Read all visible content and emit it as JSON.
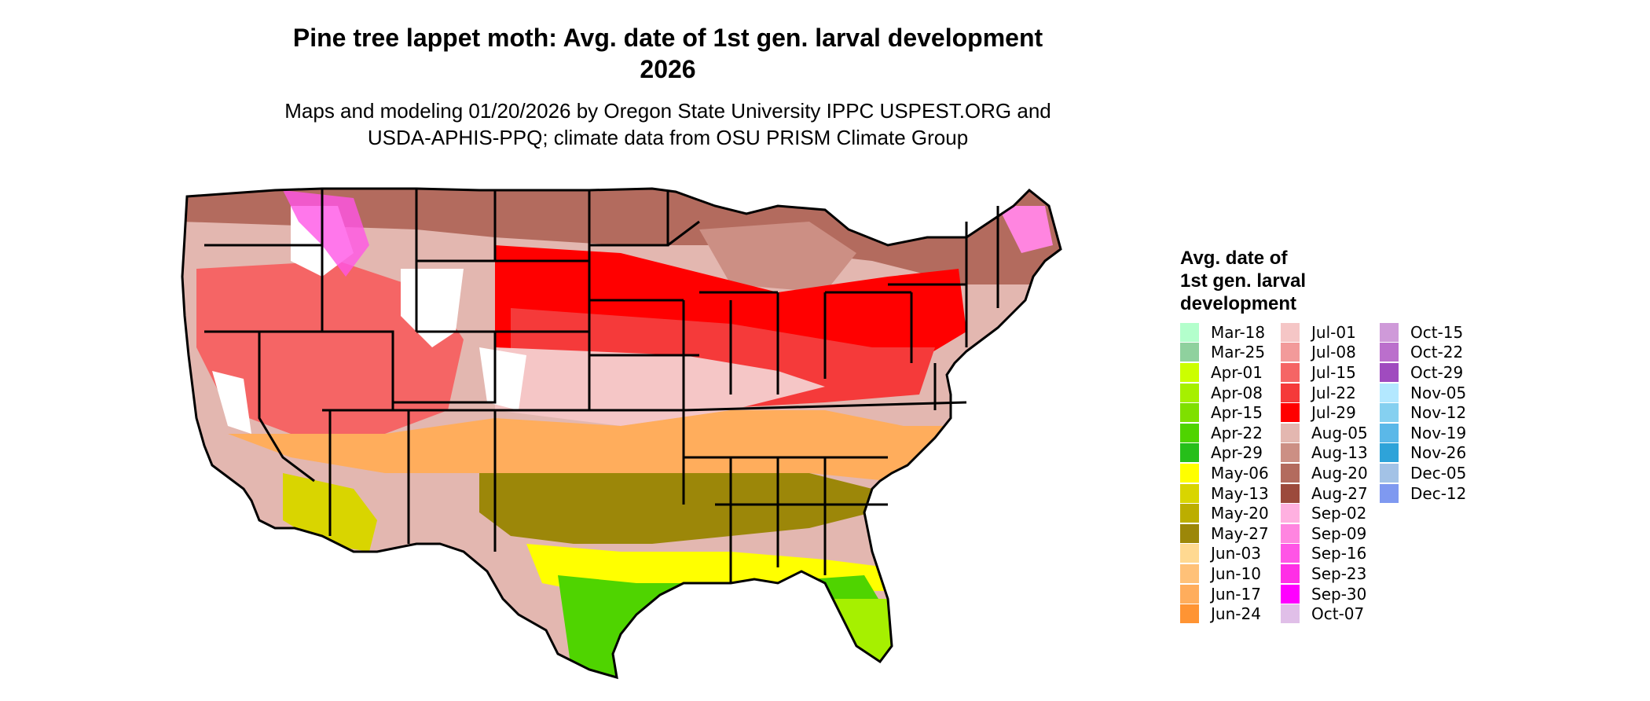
{
  "title": [
    "Pine tree lappet moth: Avg. date of 1st gen. larval development",
    "2026"
  ],
  "subtitle": [
    "Maps and modeling 01/20/2026 by Oregon State University IPPC USPEST.ORG and",
    "USDA-APHIS-PPQ; climate data from OSU PRISM Climate Group"
  ],
  "legend": {
    "title": [
      "Avg. date of",
      "1st gen. larval",
      "development"
    ],
    "columns": [
      [
        {
          "label": "Mar-18",
          "color": "#b3ffcc"
        },
        {
          "label": "Mar-25",
          "color": "#8fd19e"
        },
        {
          "label": "Apr-01",
          "color": "#ccff00"
        },
        {
          "label": "Apr-08",
          "color": "#a6f000"
        },
        {
          "label": "Apr-15",
          "color": "#7fe000"
        },
        {
          "label": "Apr-22",
          "color": "#4fd400"
        },
        {
          "label": "Apr-29",
          "color": "#26bf1a"
        },
        {
          "label": "May-06",
          "color": "#ffff00"
        },
        {
          "label": "May-13",
          "color": "#d9d500"
        },
        {
          "label": "May-20",
          "color": "#bcae00"
        },
        {
          "label": "May-27",
          "color": "#9c8709"
        },
        {
          "label": "Jun-03",
          "color": "#ffd991"
        },
        {
          "label": "Jun-10",
          "color": "#ffc178"
        },
        {
          "label": "Jun-17",
          "color": "#ffad5c"
        },
        {
          "label": "Jun-24",
          "color": "#ff9433"
        }
      ],
      [
        {
          "label": "Jul-01",
          "color": "#f5c6c6"
        },
        {
          "label": "Jul-08",
          "color": "#f29a9a"
        },
        {
          "label": "Jul-15",
          "color": "#f56565"
        },
        {
          "label": "Jul-22",
          "color": "#f53a3a"
        },
        {
          "label": "Jul-29",
          "color": "#ff0000"
        },
        {
          "label": "Aug-05",
          "color": "#e3b7b0"
        },
        {
          "label": "Aug-13",
          "color": "#cc8f84"
        },
        {
          "label": "Aug-20",
          "color": "#b36b5e"
        },
        {
          "label": "Aug-27",
          "color": "#9c4a3c"
        },
        {
          "label": "Sep-02",
          "color": "#ffb0e0"
        },
        {
          "label": "Sep-09",
          "color": "#ff85e0"
        },
        {
          "label": "Sep-16",
          "color": "#ff55e6"
        },
        {
          "label": "Sep-23",
          "color": "#ff2ee6"
        },
        {
          "label": "Sep-30",
          "color": "#ff00ff"
        },
        {
          "label": "Oct-07",
          "color": "#e0bfe8"
        }
      ],
      [
        {
          "label": "Oct-15",
          "color": "#cf9ad9"
        },
        {
          "label": "Oct-22",
          "color": "#bb6fcc"
        },
        {
          "label": "Oct-29",
          "color": "#a04bbf"
        },
        {
          "label": "Nov-05",
          "color": "#b3e8ff"
        },
        {
          "label": "Nov-12",
          "color": "#85d0f0"
        },
        {
          "label": "Nov-19",
          "color": "#5bb8e8"
        },
        {
          "label": "Nov-26",
          "color": "#2ea3d9"
        },
        {
          "label": "Dec-05",
          "color": "#a3c2e6"
        },
        {
          "label": "Dec-12",
          "color": "#7f99f0"
        }
      ]
    ]
  },
  "map_colors": {
    "outline": "#000000",
    "white_mountains": "#ffffff",
    "magenta_high": "#ff55e6",
    "brown_north": "#b36b5e",
    "light_brown": "#cc8f84",
    "red_midwest": "#ff0000",
    "red_mid": "#f53a3a",
    "pink_central": "#f5c6c6",
    "orange_south": "#ffad5c",
    "olive_gulf": "#9c8709",
    "yellow_coast": "#ffff00",
    "green_coast": "#4fd400",
    "green_florida": "#a6f000"
  }
}
